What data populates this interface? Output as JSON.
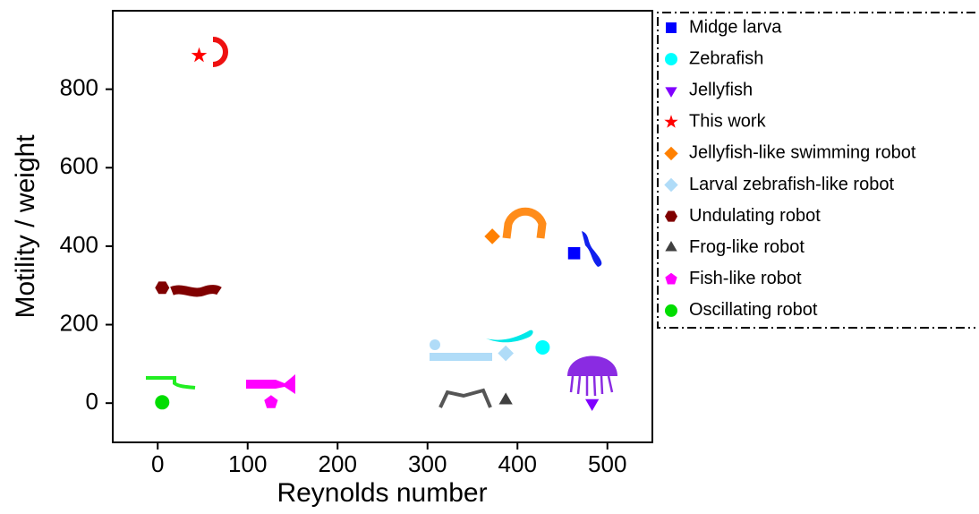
{
  "chart_data": {
    "type": "scatter",
    "x_label": "Reynolds number",
    "y_label": "Motility / weight",
    "xlim": [
      -50,
      550
    ],
    "ylim": [
      -100,
      1000
    ],
    "xticks": [
      0,
      100,
      200,
      300,
      400,
      500
    ],
    "yticks": [
      0,
      200,
      400,
      600,
      800
    ],
    "series": [
      {
        "name": "Midge larva",
        "color": "#0000ff",
        "marker": "square",
        "x": [
          463
        ],
        "values": [
          382
        ]
      },
      {
        "name": "Zebrafish",
        "color": "#00ffff",
        "marker": "circle",
        "x": [
          428
        ],
        "values": [
          142
        ]
      },
      {
        "name": "Jellyfish",
        "color": "#8000ff",
        "marker": "triangle-down",
        "x": [
          483
        ],
        "values": [
          0
        ]
      },
      {
        "name": "This work",
        "color": "#ff0000",
        "marker": "star",
        "x": [
          46
        ],
        "values": [
          886
        ]
      },
      {
        "name": "Jellyfish-like swimming robot",
        "color": "#ff8000",
        "marker": "diamond",
        "x": [
          372
        ],
        "values": [
          425
        ]
      },
      {
        "name": "Larval zebrafish-like robot",
        "color": "#b0dcf8",
        "marker": "diamond",
        "x": [
          387
        ],
        "values": [
          127
        ]
      },
      {
        "name": "Undulating robot",
        "color": "#800000",
        "marker": "hexagon",
        "x": [
          5
        ],
        "values": [
          294
        ]
      },
      {
        "name": "Frog-like robot",
        "color": "#404040",
        "marker": "triangle",
        "x": [
          387
        ],
        "values": [
          7
        ]
      },
      {
        "name": "Fish-like robot",
        "color": "#ff00ff",
        "marker": "pentagon",
        "x": [
          126
        ],
        "values": [
          2
        ]
      },
      {
        "name": "Oscillating robot",
        "color": "#00dd00",
        "marker": "circle",
        "x": [
          5
        ],
        "values": [
          2
        ]
      }
    ]
  }
}
